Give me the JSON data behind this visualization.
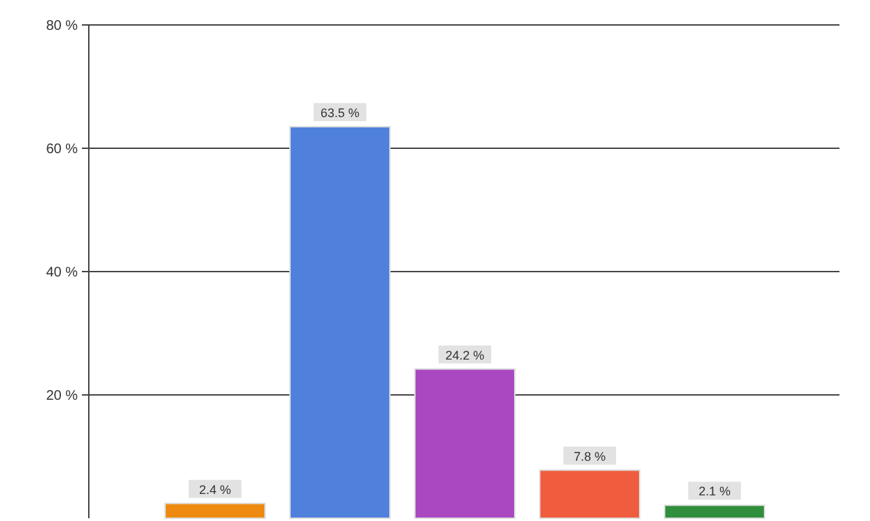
{
  "chart_data": {
    "type": "bar",
    "categories": [
      null,
      null,
      null,
      null,
      null
    ],
    "values": [
      2.4,
      63.5,
      24.2,
      7.8,
      2.1
    ],
    "colors": [
      "#ef8a10",
      "#4f80dc",
      "#aa48c2",
      "#f05c3e",
      "#2f8f3c"
    ],
    "value_labels": [
      "2.4 %",
      "63.5 %",
      "24.2 %",
      "7.8 %",
      "2.1 %"
    ],
    "ylim": [
      0,
      80
    ],
    "yticks": [
      {
        "value": 20,
        "label": "20 %"
      },
      {
        "value": 40,
        "label": "40 %"
      },
      {
        "value": 60,
        "label": "60 %"
      },
      {
        "value": 80,
        "label": "80 %"
      }
    ],
    "grid": "y"
  }
}
